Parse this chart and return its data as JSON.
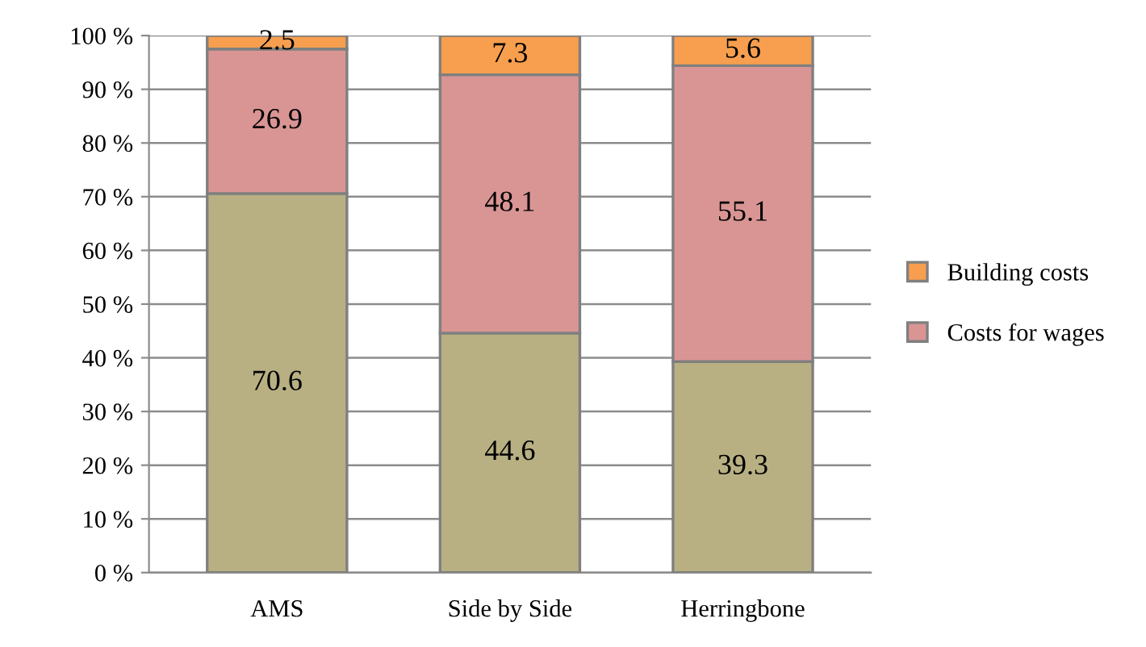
{
  "chart_data": {
    "type": "bar",
    "stacked": true,
    "categories": [
      "AMS",
      "Side by Side",
      "Herringbone"
    ],
    "series": [
      {
        "color": "#b8b083",
        "values": [
          70.6,
          44.6,
          39.3
        ]
      },
      {
        "name": "Costs for wages",
        "color": "#d99594",
        "values": [
          26.9,
          48.1,
          55.1
        ]
      },
      {
        "name": "Building costs",
        "color": "#f79f4f",
        "values": [
          2.5,
          7.3,
          5.6
        ]
      }
    ],
    "ylim": [
      0,
      100
    ],
    "yticks": [
      {
        "value": 0,
        "label": "0 %"
      },
      {
        "value": 10,
        "label": "10 %"
      },
      {
        "value": 20,
        "label": "20 %"
      },
      {
        "value": 30,
        "label": "30 %"
      },
      {
        "value": 40,
        "label": "40 %"
      },
      {
        "value": 50,
        "label": "50 %"
      },
      {
        "value": 60,
        "label": "60 %"
      },
      {
        "value": 70,
        "label": "70 %"
      },
      {
        "value": 80,
        "label": "80 %"
      },
      {
        "value": 90,
        "label": "90 %"
      },
      {
        "value": 100,
        "label": "100 %"
      }
    ],
    "grid": "y",
    "legend": "right",
    "data_labels": true
  }
}
